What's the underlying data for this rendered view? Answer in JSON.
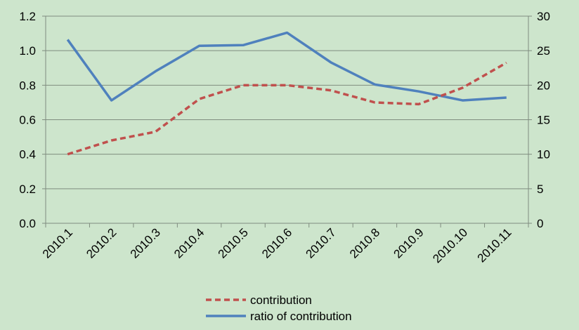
{
  "chart_data": {
    "type": "line",
    "categories": [
      "2010.1",
      "2010.2",
      "2010.3",
      "2010.4",
      "2010.5",
      "2010.6",
      "2010.7",
      "2010.8",
      "2010.9",
      "2010.10",
      "2010.11"
    ],
    "series": [
      {
        "name": "contribution",
        "axis": "left",
        "style": "dashed",
        "color": "#c0504d",
        "values": [
          0.4,
          0.48,
          0.53,
          0.72,
          0.8,
          0.8,
          0.77,
          0.7,
          0.69,
          0.785,
          0.93
        ]
      },
      {
        "name": "ratio of contribution",
        "axis": "right",
        "style": "solid",
        "color": "#4f81bd",
        "values": [
          26.6,
          17.8,
          22.0,
          25.7,
          25.8,
          27.6,
          23.3,
          20.1,
          19.1,
          17.8,
          18.2
        ]
      }
    ],
    "left_axis": {
      "ylim": [
        0,
        1.2
      ],
      "ticks": [
        "0.0",
        "0.2",
        "0.4",
        "0.6",
        "0.8",
        "1.0",
        "1.2"
      ]
    },
    "right_axis": {
      "ylim": [
        0,
        30
      ],
      "ticks": [
        "0",
        "5",
        "10",
        "15",
        "20",
        "25",
        "30"
      ]
    },
    "grid": true,
    "legend_position": "bottom",
    "background": "#cde5cc"
  }
}
